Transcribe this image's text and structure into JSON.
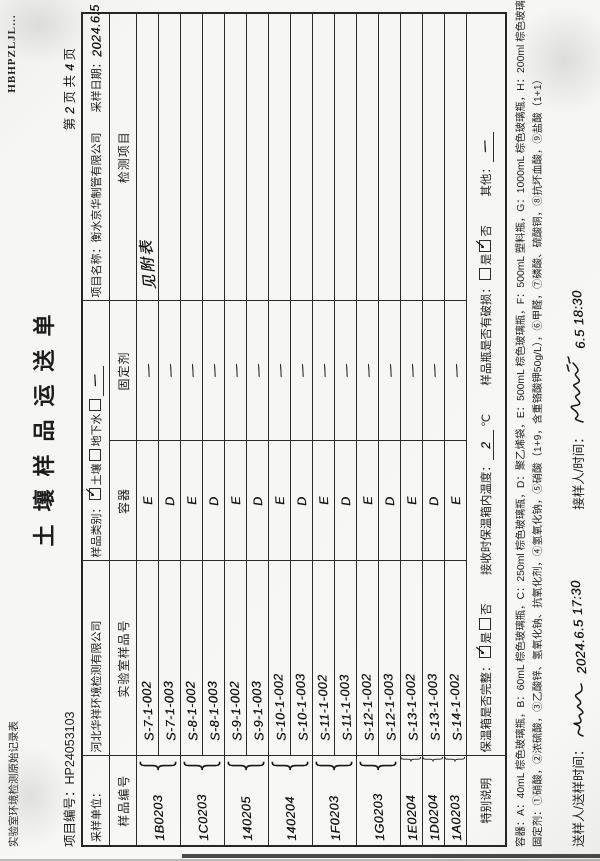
{
  "meta": {
    "form_name": "实验室环境检测原始记录表",
    "form_code": "HBHPZLJL…",
    "page_label_1": "第",
    "page_no": "2",
    "page_label_2": "页 共",
    "page_total": "4",
    "page_label_3": "页"
  },
  "title": "土壤样品运送单",
  "project": {
    "no_label": "项目编号：",
    "no": "HP24053103"
  },
  "info": {
    "sampling_unit_label": "采样单位：",
    "sampling_unit": "河北华祥环境检测有限公司",
    "sample_type_label": "样品类别：",
    "type_soil": "土壤",
    "type_groundwater": "地下水",
    "soil_tick": "✓",
    "groundwater_tick": "",
    "other_tick": "",
    "sample_type_other": "一",
    "project_name_label": "项目名称：",
    "project_name": "衡水京华制管有限公司",
    "sampling_date_label": "采样日期：",
    "sampling_date": "2024.6.5"
  },
  "table": {
    "headers": [
      "样品编号",
      "实验室样品号",
      "容器",
      "固定剂",
      "检测项目"
    ],
    "groups": [
      {
        "sample_no": "1B0203",
        "rows": [
          {
            "lab_no": "S-7-1-002",
            "container": "E",
            "fixative": "—",
            "test_items": "见附表"
          },
          {
            "lab_no": "S-7-1-003",
            "container": "D",
            "fixative": "—",
            "test_items": ""
          }
        ]
      },
      {
        "sample_no": "1C0203",
        "rows": [
          {
            "lab_no": "S-8-1-002",
            "container": "E",
            "fixative": "—",
            "test_items": ""
          },
          {
            "lab_no": "S-8-1-003",
            "container": "D",
            "fixative": "—",
            "test_items": ""
          }
        ]
      },
      {
        "sample_no": "140205",
        "rows": [
          {
            "lab_no": "S-9-1-002",
            "container": "E",
            "fixative": "—",
            "test_items": ""
          },
          {
            "lab_no": "S-9-1-003",
            "container": "D",
            "fixative": "—",
            "test_items": ""
          }
        ]
      },
      {
        "sample_no": "140204",
        "rows": [
          {
            "lab_no": "S-10-1-002",
            "container": "E",
            "fixative": "—",
            "test_items": ""
          },
          {
            "lab_no": "S-10-1-003",
            "container": "D",
            "fixative": "—",
            "test_items": ""
          }
        ]
      },
      {
        "sample_no": "1F0203",
        "rows": [
          {
            "lab_no": "S-11-1-002",
            "container": "E",
            "fixative": "—",
            "test_items": ""
          },
          {
            "lab_no": "S-11-1-003",
            "container": "D",
            "fixative": "—",
            "test_items": ""
          }
        ]
      },
      {
        "sample_no": "1G0203",
        "rows": [
          {
            "lab_no": "S-12-1-002",
            "container": "E",
            "fixative": "—",
            "test_items": ""
          },
          {
            "lab_no": "S-12-1-003",
            "container": "D",
            "fixative": "—",
            "test_items": ""
          }
        ]
      },
      {
        "sample_no": "1E0204",
        "rows": [
          {
            "lab_no": "S-13-1-002",
            "container": "E",
            "fixative": "—",
            "test_items": ""
          }
        ]
      },
      {
        "sample_no": "1D0204",
        "rows": [
          {
            "lab_no": "S-13-1-003",
            "container": "D",
            "fixative": "—",
            "test_items": ""
          }
        ]
      },
      {
        "sample_no": "1A0203",
        "rows": [
          {
            "lab_no": "S-14-1-002",
            "container": "E",
            "fixative": "—",
            "test_items": ""
          }
        ]
      }
    ]
  },
  "special": {
    "label": "特别说明",
    "box_intact_label": "保温箱是否完整：",
    "yes_text": "是",
    "no_text": "否",
    "box_intact_yes_tick": "✓",
    "box_intact_no_tick": "",
    "temp_label": "接收时保温箱内温度：",
    "temp_value": "2",
    "temp_unit": "℃",
    "bottle_damaged_label": "样品瓶是否有破损：",
    "bottle_yes_tick": "",
    "bottle_no_tick": "✓",
    "other_label": "其他：",
    "other_value": "一"
  },
  "notes": {
    "container_line": "容器：A：40mL 棕色玻璃瓶，B：60mL 棕色玻璃瓶，C：250ml 棕色玻璃瓶，D：聚乙烯袋，E：500mL 棕色玻璃瓶，F：500mL 塑料瓶，G：1000mL 棕色玻璃瓶，H：200ml 棕色玻璃瓶",
    "fixative_line": "固定剂：①硝酸，②浓硫酸，③乙酸锌、氢氧化钠、抗氧化剂，④氢氧化钠，⑤硝酸（1+9，含重铬酸钾50g/L），⑥甲醛，⑦磷酸、硫酸铜，⑧抗坏血酸，⑨盐酸（1+1）"
  },
  "footer": {
    "sender_label": "送样人/送样时间：",
    "sender_datetime": "2024.6.5 17:30",
    "receiver_label": "接样人/时间：",
    "receiver_datetime": "6.5 18:30"
  },
  "colors": {
    "paper": "#f7f7f5",
    "ink_printed": "#1c1c1c",
    "ink_pen": "#141414",
    "line": "#2b2b2b"
  }
}
